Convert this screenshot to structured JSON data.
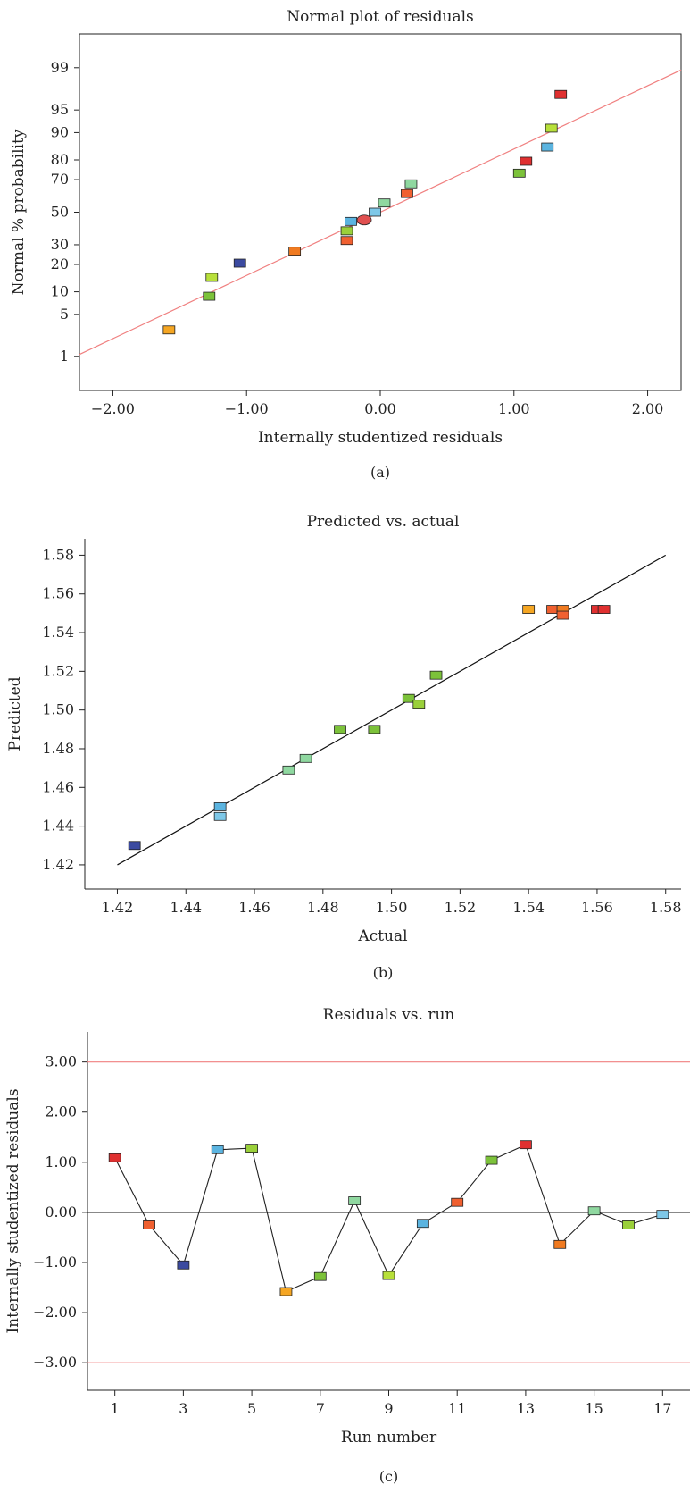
{
  "chart_data": [
    {
      "type": "scatter",
      "title": "Normal plot of residuals",
      "xlabel": "Internally studentized residuals",
      "ylabel": "Normal % probability",
      "panel_label": "(a)",
      "xlim": [
        -2.25,
        2.25
      ],
      "y_scale": "normal-probability",
      "x_ticks": [
        -2.0,
        -1.0,
        0.0,
        1.0,
        2.0
      ],
      "x_tick_labels": [
        "−2.00",
        "−1.00",
        "0.00",
        "1.00",
        "2.00"
      ],
      "y_ticks": [
        1,
        5,
        10,
        20,
        30,
        50,
        70,
        80,
        90,
        95,
        99
      ],
      "y_tick_labels": [
        "1",
        "5",
        "10",
        "20",
        "30",
        "50",
        "70",
        "80",
        "90",
        "95",
        "99"
      ],
      "reference_line": {
        "x": [
          -2.25,
          2.25
        ],
        "y": [
          1.1,
          98.9
        ],
        "color": "#f08080"
      },
      "points": [
        {
          "x": -1.58,
          "y": 2.9,
          "color": "#f5a623"
        },
        {
          "x": -1.28,
          "y": 8.8,
          "color": "#7cc23a"
        },
        {
          "x": -1.26,
          "y": 14.7,
          "color": "#b8e03a"
        },
        {
          "x": -1.05,
          "y": 20.6,
          "color": "#3b4aa0"
        },
        {
          "x": -0.64,
          "y": 26.5,
          "color": "#f07a20"
        },
        {
          "x": -0.25,
          "y": 32.4,
          "color": "#f06030"
        },
        {
          "x": -0.25,
          "y": 38.2,
          "color": "#9ad03a"
        },
        {
          "x": -0.22,
          "y": 44.1,
          "color": "#5bb4e0"
        },
        {
          "x": -0.12,
          "y": 45.0,
          "color": "#e05050",
          "marker": "ellipse"
        },
        {
          "x": -0.04,
          "y": 50.0,
          "color": "#7ec8e8"
        },
        {
          "x": 0.03,
          "y": 55.9,
          "color": "#8fd8a0"
        },
        {
          "x": 0.2,
          "y": 61.8,
          "color": "#f06030"
        },
        {
          "x": 0.23,
          "y": 67.6,
          "color": "#8fd8a0"
        },
        {
          "x": 1.04,
          "y": 73.5,
          "color": "#7cc23a"
        },
        {
          "x": 1.09,
          "y": 79.4,
          "color": "#e03030"
        },
        {
          "x": 1.25,
          "y": 85.3,
          "color": "#5bb4e0"
        },
        {
          "x": 1.28,
          "y": 91.2,
          "color": "#b8e03a"
        },
        {
          "x": 1.35,
          "y": 97.1,
          "color": "#e03030"
        }
      ]
    },
    {
      "type": "scatter",
      "title": "Predicted vs. actual",
      "xlabel": "Actual",
      "ylabel": "Predicted",
      "panel_label": "(b)",
      "xlim": [
        1.4105,
        1.5845
      ],
      "ylim": [
        1.4075,
        1.5885
      ],
      "x_ticks": [
        1.42,
        1.44,
        1.46,
        1.48,
        1.5,
        1.52,
        1.54,
        1.56,
        1.58
      ],
      "x_tick_labels": [
        "1.42",
        "1.44",
        "1.46",
        "1.48",
        "1.50",
        "1.52",
        "1.54",
        "1.56",
        "1.58"
      ],
      "y_ticks": [
        1.42,
        1.44,
        1.46,
        1.48,
        1.5,
        1.52,
        1.54,
        1.56,
        1.58
      ],
      "y_tick_labels": [
        "1.42",
        "1.44",
        "1.46",
        "1.48",
        "1.50",
        "1.52",
        "1.54",
        "1.56",
        "1.58"
      ],
      "reference_line": {
        "x": [
          1.42,
          1.58
        ],
        "y": [
          1.42,
          1.58
        ],
        "color": "#111111"
      },
      "points": [
        {
          "x": 1.425,
          "y": 1.43,
          "color": "#3b4aa0"
        },
        {
          "x": 1.45,
          "y": 1.45,
          "color": "#5bb4e0"
        },
        {
          "x": 1.45,
          "y": 1.445,
          "color": "#7ec8e8"
        },
        {
          "x": 1.47,
          "y": 1.469,
          "color": "#8fd8a0"
        },
        {
          "x": 1.475,
          "y": 1.475,
          "color": "#8fd8a0"
        },
        {
          "x": 1.485,
          "y": 1.49,
          "color": "#7cc23a"
        },
        {
          "x": 1.495,
          "y": 1.49,
          "color": "#7cc23a"
        },
        {
          "x": 1.505,
          "y": 1.506,
          "color": "#7cc23a"
        },
        {
          "x": 1.508,
          "y": 1.503,
          "color": "#9ad03a"
        },
        {
          "x": 1.513,
          "y": 1.518,
          "color": "#7cc23a"
        },
        {
          "x": 1.54,
          "y": 1.552,
          "color": "#f5a623"
        },
        {
          "x": 1.547,
          "y": 1.552,
          "color": "#f06030"
        },
        {
          "x": 1.55,
          "y": 1.552,
          "color": "#f07a20"
        },
        {
          "x": 1.55,
          "y": 1.549,
          "color": "#f06030"
        },
        {
          "x": 1.56,
          "y": 1.552,
          "color": "#e03030"
        },
        {
          "x": 1.562,
          "y": 1.552,
          "color": "#e03030"
        }
      ]
    },
    {
      "type": "line",
      "title": "Residuals vs. run",
      "xlabel": "Run number",
      "ylabel": "Internally studentized residuals",
      "panel_label": "(c)",
      "xlim": [
        0.2,
        17.8
      ],
      "ylim": [
        -3.55,
        3.6
      ],
      "x_ticks": [
        1,
        3,
        5,
        7,
        9,
        11,
        13,
        15,
        17
      ],
      "x_tick_labels": [
        "1",
        "3",
        "5",
        "7",
        "9",
        "11",
        "13",
        "15",
        "17"
      ],
      "y_ticks": [
        -3,
        -2,
        -1,
        0,
        1,
        2,
        3
      ],
      "y_tick_labels": [
        "−3.00",
        "−2.00",
        "−1.00",
        "0.00",
        "1.00",
        "2.00",
        "3.00"
      ],
      "limit_lines": [
        {
          "y": 3.0,
          "color": "#f08080"
        },
        {
          "y": -3.0,
          "color": "#f08080"
        },
        {
          "y": 0.0,
          "color": "#111111"
        }
      ],
      "x": [
        1,
        2,
        3,
        4,
        5,
        6,
        7,
        8,
        9,
        10,
        11,
        12,
        13,
        14,
        15,
        16,
        17
      ],
      "values": [
        1.09,
        -0.25,
        -1.05,
        1.25,
        1.28,
        -1.58,
        -1.28,
        0.23,
        -1.26,
        -0.22,
        0.2,
        1.04,
        1.35,
        -0.64,
        0.03,
        -0.25,
        -0.04
      ],
      "point_colors": [
        "#e03030",
        "#f06030",
        "#3b4aa0",
        "#5bb4e0",
        "#9ad03a",
        "#f5a623",
        "#7cc23a",
        "#8fd8a0",
        "#b8e03a",
        "#5bb4e0",
        "#f06030",
        "#7cc23a",
        "#e03030",
        "#f07a20",
        "#8fd8a0",
        "#9ad03a",
        "#7ec8e8"
      ]
    }
  ]
}
